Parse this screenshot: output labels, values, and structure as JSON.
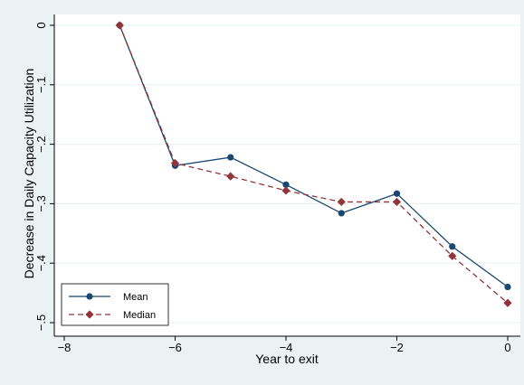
{
  "chart_data": {
    "type": "line",
    "title": "",
    "xlabel": "Year to exit",
    "ylabel": "Decrease in Daily Capacity Utilization",
    "xlim": [
      -8,
      0
    ],
    "ylim": [
      -0.5,
      0
    ],
    "x_ticks": [
      -8,
      -6,
      -4,
      -2,
      0
    ],
    "x_tick_labels": [
      "−8",
      "−6",
      "−4",
      "−2",
      "0"
    ],
    "y_ticks": [
      0,
      -0.1,
      -0.2,
      -0.3,
      -0.4,
      -0.5
    ],
    "y_tick_labels": [
      "0",
      "−.1",
      "−.2",
      "−.3",
      "−.4",
      "−.5"
    ],
    "grid": true,
    "legend_position": "bottom-left",
    "x": [
      -7,
      -6,
      -5,
      -4,
      -3,
      -2,
      -1,
      0
    ],
    "series": [
      {
        "name": "Mean",
        "values": [
          0,
          -0.236,
          -0.222,
          -0.268,
          -0.316,
          -0.283,
          -0.372,
          -0.44
        ],
        "color": "#1a476f",
        "marker": "circle",
        "line_style": "solid"
      },
      {
        "name": "Median",
        "values": [
          0,
          -0.232,
          -0.254,
          -0.278,
          -0.297,
          -0.297,
          -0.388,
          -0.467
        ],
        "color": "#90353b",
        "marker": "diamond",
        "line_style": "dashed"
      }
    ]
  }
}
